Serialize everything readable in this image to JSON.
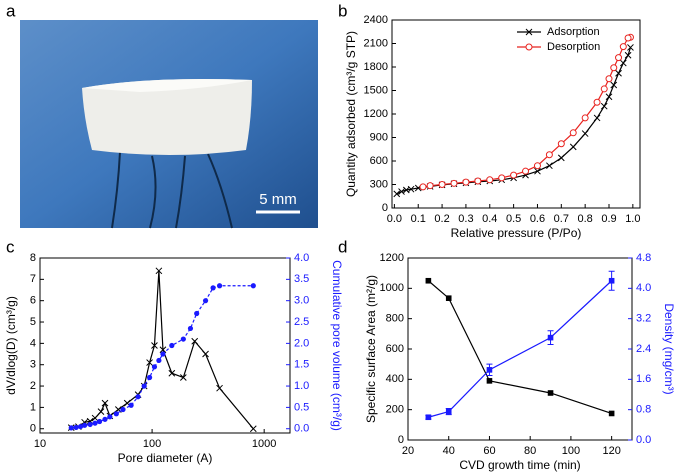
{
  "panel_labels": [
    "a",
    "b",
    "c",
    "d"
  ],
  "scale_bar": "5 mm",
  "chart_data": [
    {
      "type": "line",
      "xlabel": "Relative pressure (P/Po)",
      "ylabel": "Quantity adsorbed (cm³/g STP)",
      "xlim": [
        -0.01,
        1.03
      ],
      "ylim": [
        0,
        2400
      ],
      "xticks": [
        {
          "value": 0,
          "label": "0.0"
        },
        0.1,
        0.2,
        0.3,
        0.4,
        0.5,
        0.6,
        0.7,
        0.8,
        0.9,
        {
          "value": 1,
          "label": "1.0"
        }
      ],
      "yticks": [
        0,
        300,
        600,
        900,
        1200,
        1500,
        1800,
        2100,
        2400
      ],
      "legend": "upper left",
      "series": [
        {
          "name": "Adsorption",
          "color": "#000000",
          "marker": "x",
          "x": [
            0.01,
            0.03,
            0.05,
            0.07,
            0.1,
            0.15,
            0.2,
            0.25,
            0.3,
            0.35,
            0.4,
            0.45,
            0.5,
            0.55,
            0.6,
            0.65,
            0.7,
            0.75,
            0.8,
            0.85,
            0.88,
            0.9,
            0.92,
            0.94,
            0.96,
            0.98,
            0.99
          ],
          "values": [
            180,
            210,
            230,
            240,
            255,
            275,
            295,
            310,
            320,
            335,
            345,
            360,
            385,
            420,
            470,
            540,
            640,
            780,
            950,
            1150,
            1300,
            1420,
            1570,
            1720,
            1850,
            1950,
            2050
          ]
        },
        {
          "name": "Desorption",
          "color": "#e8231f",
          "marker": "open-circle",
          "x": [
            0.99,
            0.98,
            0.96,
            0.94,
            0.92,
            0.9,
            0.88,
            0.85,
            0.8,
            0.75,
            0.7,
            0.65,
            0.6,
            0.55,
            0.5,
            0.45,
            0.4,
            0.35,
            0.3,
            0.25,
            0.2,
            0.15,
            0.12
          ],
          "values": [
            2180,
            2170,
            2060,
            1920,
            1790,
            1650,
            1520,
            1350,
            1150,
            960,
            820,
            680,
            540,
            470,
            420,
            385,
            360,
            345,
            330,
            315,
            300,
            285,
            270
          ]
        }
      ]
    },
    {
      "type": "line",
      "xscale": "log",
      "xlabel": "Pore diameter (A)",
      "ylabel": "dV/dlog(D)  (cm³/g)",
      "y2label": "Cumulative pore volume (cm³/g)",
      "y2color": "#1a1aff",
      "xlim": [
        10,
        1700
      ],
      "ylim": [
        -0.2,
        8
      ],
      "y2lim": [
        -0.1,
        4
      ],
      "xticks": [
        10,
        100,
        1000
      ],
      "yticks": [
        0,
        1,
        2,
        3,
        4,
        5,
        6,
        7,
        8
      ],
      "y2ticks": [
        {
          "value": 0,
          "label": "0.0"
        },
        0.5,
        {
          "value": 1,
          "label": "1.0"
        },
        1.5,
        {
          "value": 2,
          "label": "2.0"
        },
        2.5,
        {
          "value": 3,
          "label": "3.0"
        },
        3.5,
        {
          "value": 4,
          "label": "4.0"
        }
      ],
      "series": [
        {
          "color": "#000000",
          "marker": "x",
          "x": [
            19,
            22,
            25,
            28,
            31,
            35,
            38,
            42,
            50,
            60,
            75,
            85,
            95,
            105,
            115,
            125,
            150,
            190,
            240,
            300,
            400,
            800
          ],
          "values": [
            0.05,
            0.1,
            0.3,
            0.35,
            0.5,
            0.8,
            1.2,
            0.6,
            0.9,
            1.2,
            1.6,
            2.0,
            3.1,
            3.9,
            7.4,
            3.7,
            2.6,
            2.4,
            4.1,
            3.5,
            1.9,
            0.0
          ]
        },
        {
          "color": "#1a1aff",
          "marker": "dot",
          "dash": true,
          "axis": "y2",
          "x": [
            19,
            21,
            23,
            25,
            28,
            31,
            34,
            38,
            42,
            48,
            55,
            65,
            75,
            85,
            95,
            105,
            115,
            125,
            150,
            190,
            220,
            250,
            300,
            350,
            400,
            800
          ],
          "values": [
            0.02,
            0.03,
            0.05,
            0.08,
            0.1,
            0.13,
            0.17,
            0.22,
            0.28,
            0.35,
            0.45,
            0.55,
            0.75,
            1.0,
            1.2,
            1.45,
            1.6,
            1.75,
            1.95,
            2.1,
            2.35,
            2.7,
            3.0,
            3.3,
            3.35,
            3.35
          ]
        }
      ]
    },
    {
      "type": "line",
      "xlabel": "CVD growth time (min)",
      "ylabel": "Specific surface Area (m²/g)",
      "y2label": "Density (mg/cm³)",
      "y2color": "#1a1aff",
      "xlim": [
        20,
        130
      ],
      "ylim": [
        0,
        1200
      ],
      "y2lim": [
        0,
        4.8
      ],
      "xticks": [
        20,
        40,
        60,
        80,
        100,
        120
      ],
      "yticks": [
        0,
        200,
        400,
        600,
        800,
        1000,
        1200
      ],
      "y2ticks": [
        {
          "value": 0,
          "label": "0.0"
        },
        0.8,
        1.6,
        2.4,
        3.2,
        {
          "value": 4,
          "label": "4.0"
        },
        4.8
      ],
      "series": [
        {
          "color": "#000000",
          "marker": "square",
          "x": [
            30,
            40,
            60,
            90,
            120
          ],
          "values": [
            1050,
            935,
            390,
            310,
            175
          ]
        },
        {
          "color": "#1a1aff",
          "marker": "square",
          "axis": "y2",
          "x": [
            30,
            40,
            60,
            90,
            120
          ],
          "values": [
            0.6,
            0.75,
            1.85,
            2.7,
            4.2
          ],
          "errors": [
            0.05,
            0.08,
            0.15,
            0.18,
            0.25
          ]
        }
      ]
    }
  ]
}
